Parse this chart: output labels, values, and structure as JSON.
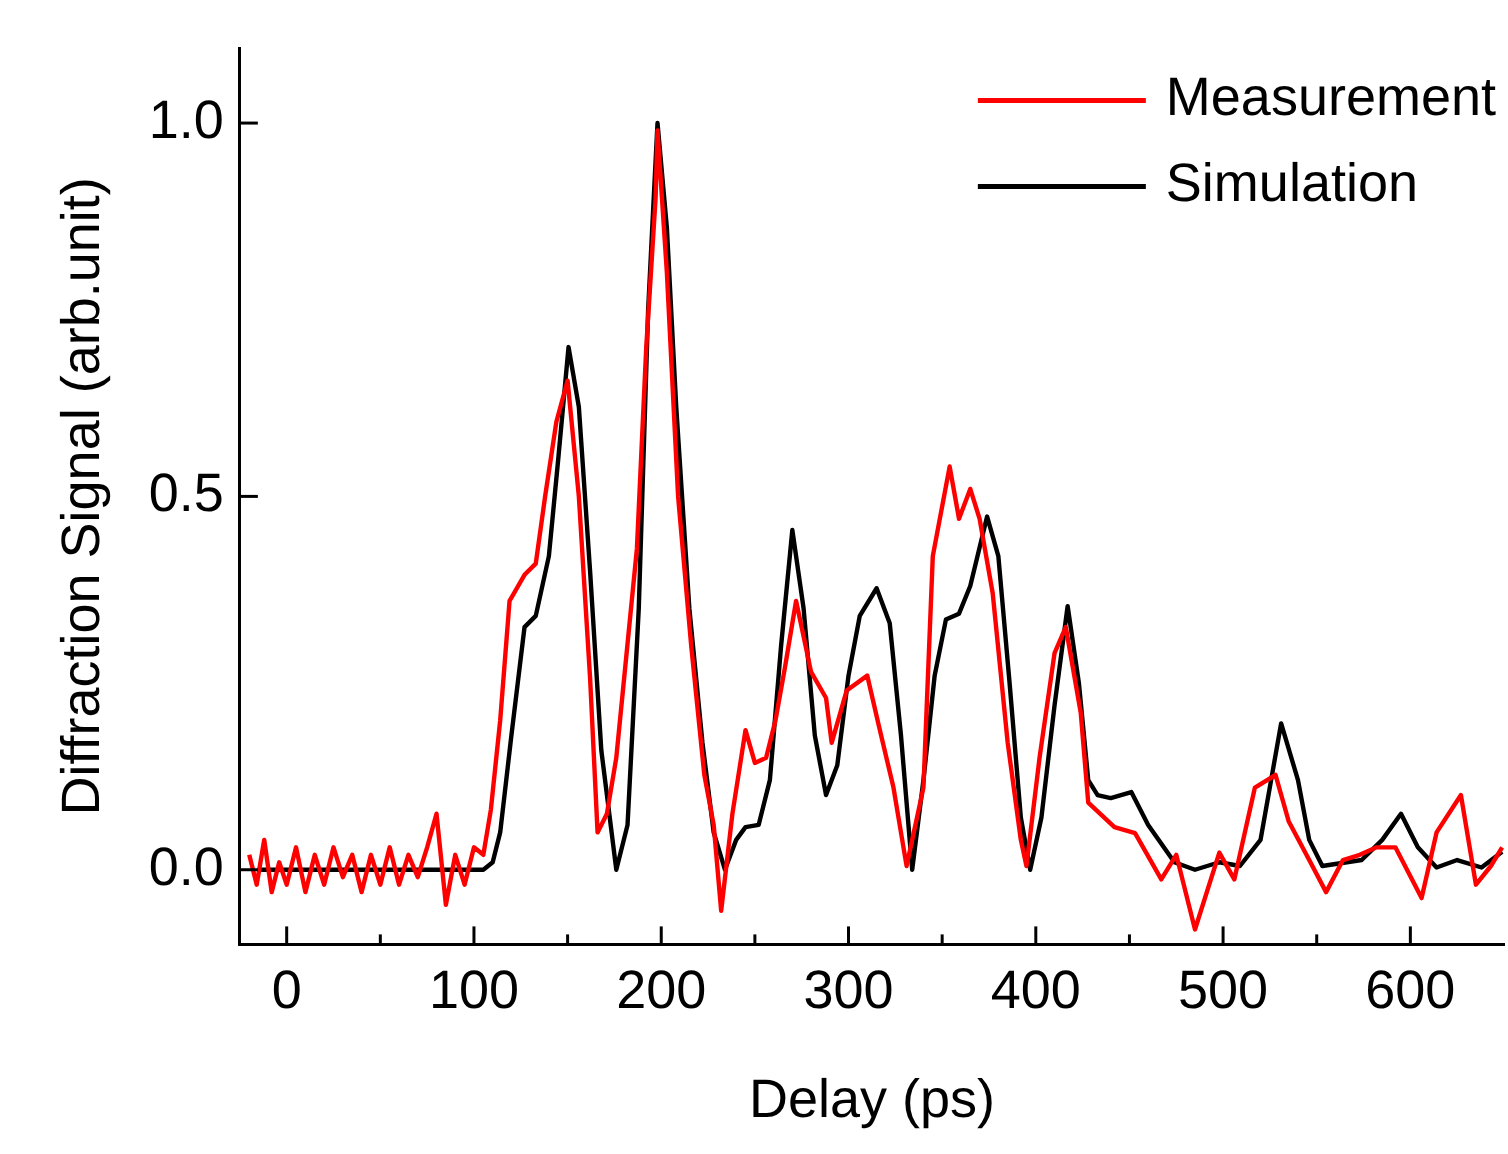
{
  "chart_data": {
    "type": "line",
    "xlabel": "Delay (ps)",
    "ylabel": "Diffraction Signal (arb.unit)",
    "xlim": [
      -25,
      650
    ],
    "ylim": [
      -0.1,
      1.1
    ],
    "xticks": [
      0,
      {
        "value": 50,
        "label": null
      },
      100,
      {
        "value": 150,
        "label": null
      },
      200,
      {
        "value": 250,
        "label": null
      },
      300,
      {
        "value": 350,
        "label": null
      },
      400,
      {
        "value": 450,
        "label": null
      },
      500,
      {
        "value": 550,
        "label": null
      },
      600
    ],
    "yticks": [
      {
        "value": 0,
        "label": "0.0"
      },
      {
        "value": 0.5,
        "label": "0.5"
      },
      {
        "value": 1,
        "label": "1.0"
      }
    ],
    "grid": false,
    "legend": "top right",
    "marker": "none",
    "line_style": "solid",
    "series": [
      {
        "name": "Measurement",
        "color": "#ff0000",
        "x": [
          -20,
          -16,
          -12,
          -8,
          -4,
          0,
          5,
          10,
          15,
          20,
          25,
          30,
          35,
          40,
          45,
          50,
          55,
          60,
          65,
          70,
          75,
          80,
          85,
          90,
          95,
          100,
          105,
          109,
          114,
          119,
          127,
          133,
          138,
          144,
          150,
          156,
          162,
          166,
          171,
          176,
          187,
          192,
          197,
          198,
          203,
          209,
          216,
          223,
          228,
          232,
          238,
          245,
          250,
          256,
          261,
          266,
          272,
          280,
          288,
          291,
          299,
          310,
          316,
          324,
          331,
          340,
          345,
          354,
          359,
          365,
          370,
          377,
          385,
          392,
          395,
          402,
          410,
          416,
          424,
          428,
          442,
          453,
          467,
          475,
          485,
          498,
          506,
          517,
          528,
          535,
          546,
          555,
          564,
          573,
          582,
          592,
          606,
          614,
          627,
          635,
          643,
          649
        ],
        "values": [
          0.02,
          -0.02,
          0.04,
          -0.03,
          0.01,
          -0.02,
          0.03,
          -0.03,
          0.02,
          -0.02,
          0.03,
          -0.01,
          0.02,
          -0.03,
          0.02,
          -0.02,
          0.03,
          -0.02,
          0.02,
          -0.01,
          0.03,
          0.075,
          -0.047,
          0.02,
          -0.02,
          0.03,
          0.02,
          0.08,
          0.2,
          0.36,
          0.395,
          0.41,
          0.5,
          0.6,
          0.655,
          0.5,
          0.257,
          0.05,
          0.075,
          0.15,
          0.43,
          0.7,
          0.9,
          0.99,
          0.8,
          0.5,
          0.3,
          0.127,
          0.06,
          -0.055,
          0.075,
          0.187,
          0.143,
          0.15,
          0.2,
          0.27,
          0.36,
          0.265,
          0.23,
          0.17,
          0.24,
          0.26,
          0.195,
          0.11,
          0.005,
          0.11,
          0.42,
          0.54,
          0.47,
          0.51,
          0.47,
          0.37,
          0.17,
          0.04,
          0.005,
          0.15,
          0.29,
          0.325,
          0.21,
          0.09,
          0.057,
          0.049,
          -0.013,
          0.02,
          -0.08,
          0.023,
          -0.013,
          0.11,
          0.127,
          0.065,
          0.013,
          -0.03,
          0.013,
          0.02,
          0.03,
          0.03,
          -0.038,
          0.05,
          0.1,
          -0.02,
          0.005,
          0.03
        ]
      },
      {
        "name": "Simulation",
        "color": "#000000",
        "x": [
          -15,
          50,
          105,
          110,
          114,
          120,
          127,
          133,
          140,
          145,
          150.5,
          156,
          162,
          168,
          176,
          182,
          188,
          193,
          198,
          203,
          208,
          215,
          222,
          228,
          234,
          240,
          245,
          252,
          258,
          264,
          270,
          276,
          282,
          288,
          294,
          300,
          306,
          315,
          322,
          328,
          334,
          340,
          346,
          352,
          359,
          365,
          374,
          380,
          386,
          392,
          397,
          403,
          410,
          417,
          423,
          428,
          433,
          440,
          451,
          460,
          474,
          485,
          498,
          509,
          520,
          531,
          540,
          546,
          553,
          574,
          585,
          595,
          604,
          614,
          625,
          638,
          649
        ],
        "values": [
          0,
          0,
          0,
          0.01,
          0.05,
          0.18,
          0.325,
          0.34,
          0.42,
          0.55,
          0.7,
          0.62,
          0.4,
          0.16,
          0,
          0.06,
          0.35,
          0.75,
          1,
          0.86,
          0.62,
          0.35,
          0.17,
          0.05,
          0,
          0.04,
          0.057,
          0.06,
          0.12,
          0.3,
          0.455,
          0.35,
          0.18,
          0.1,
          0.14,
          0.26,
          0.34,
          0.377,
          0.33,
          0.18,
          0,
          0.12,
          0.26,
          0.335,
          0.343,
          0.38,
          0.473,
          0.42,
          0.25,
          0.07,
          0,
          0.07,
          0.22,
          0.353,
          0.25,
          0.12,
          0.1,
          0.096,
          0.104,
          0.06,
          0.01,
          0,
          0.01,
          0.005,
          0.04,
          0.196,
          0.12,
          0.04,
          0.005,
          0.013,
          0.04,
          0.075,
          0.03,
          0.003,
          0.013,
          0.003,
          0.024
        ]
      }
    ]
  }
}
